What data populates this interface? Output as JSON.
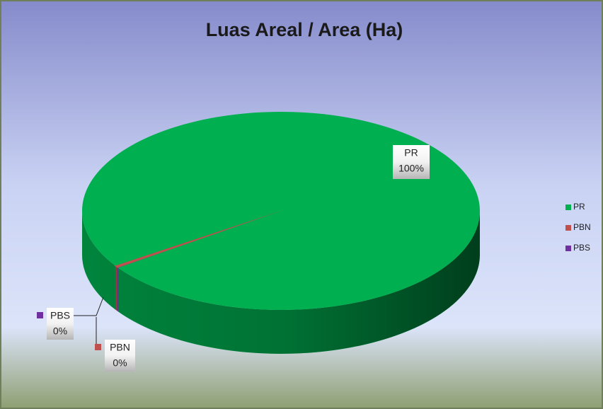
{
  "chart_data": {
    "type": "pie",
    "title": "Luas Areal / Area (Ha)",
    "categories": [
      "PR",
      "PBN",
      "PBS"
    ],
    "values": [
      99.6,
      0.3,
      0.1
    ],
    "value_labels": [
      "100%",
      "0%",
      "0%"
    ],
    "colors": [
      "#00b050",
      "#c0504d",
      "#7030a0"
    ],
    "legend": "right"
  }
}
